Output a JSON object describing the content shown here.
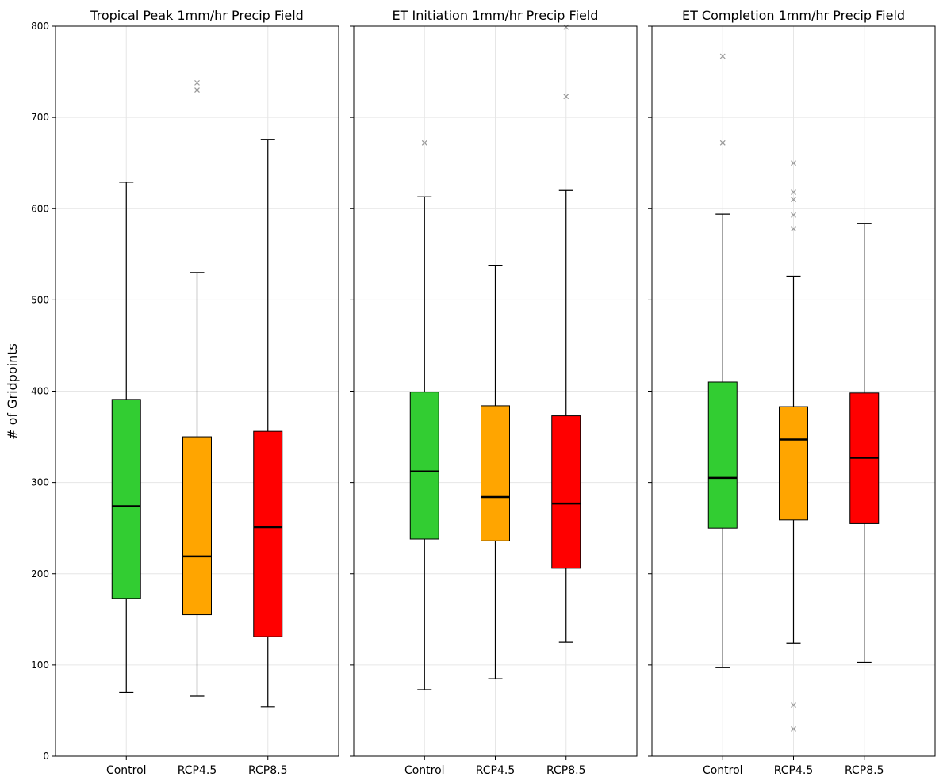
{
  "figure": {
    "ylabel": "# of Gridpoints"
  },
  "chart_data": [
    {
      "type": "box",
      "title": "Tropical Peak 1mm/hr Precip Field",
      "xlabel": "",
      "ylabel": "# of Gridpoints",
      "ylim": [
        0,
        800
      ],
      "yticks": [
        0,
        100,
        200,
        300,
        400,
        500,
        600,
        700,
        800
      ],
      "grid": true,
      "categories": [
        "Control",
        "RCP4.5",
        "RCP8.5"
      ],
      "boxes": [
        {
          "name": "Control",
          "color": "#32CD32",
          "whisker_low": 70,
          "q1": 173,
          "median": 274,
          "q3": 391,
          "whisker_high": 629,
          "outliers": []
        },
        {
          "name": "RCP4.5",
          "color": "#FFA500",
          "whisker_low": 66,
          "q1": 155,
          "median": 219,
          "q3": 350,
          "whisker_high": 530,
          "outliers": [
            730,
            738
          ]
        },
        {
          "name": "RCP8.5",
          "color": "#FF0000",
          "whisker_low": 54,
          "q1": 131,
          "median": 251,
          "q3": 356,
          "whisker_high": 676,
          "outliers": []
        }
      ]
    },
    {
      "type": "box",
      "title": "ET Initiation 1mm/hr Precip Field",
      "xlabel": "",
      "ylabel": "",
      "ylim": [
        0,
        800
      ],
      "yticks": [
        0,
        100,
        200,
        300,
        400,
        500,
        600,
        700,
        800
      ],
      "grid": true,
      "categories": [
        "Control",
        "RCP4.5",
        "RCP8.5"
      ],
      "boxes": [
        {
          "name": "Control",
          "color": "#32CD32",
          "whisker_low": 73,
          "q1": 238,
          "median": 312,
          "q3": 399,
          "whisker_high": 613,
          "outliers": [
            672
          ]
        },
        {
          "name": "RCP4.5",
          "color": "#FFA500",
          "whisker_low": 85,
          "q1": 236,
          "median": 284,
          "q3": 384,
          "whisker_high": 538,
          "outliers": []
        },
        {
          "name": "RCP8.5",
          "color": "#FF0000",
          "whisker_low": 125,
          "q1": 206,
          "median": 277,
          "q3": 373,
          "whisker_high": 620,
          "outliers": [
            723,
            799
          ]
        }
      ]
    },
    {
      "type": "box",
      "title": "ET Completion 1mm/hr Precip Field",
      "xlabel": "",
      "ylabel": "",
      "ylim": [
        0,
        800
      ],
      "yticks": [
        0,
        100,
        200,
        300,
        400,
        500,
        600,
        700,
        800
      ],
      "grid": true,
      "categories": [
        "Control",
        "RCP4.5",
        "RCP8.5"
      ],
      "boxes": [
        {
          "name": "Control",
          "color": "#32CD32",
          "whisker_low": 97,
          "q1": 250,
          "median": 305,
          "q3": 410,
          "whisker_high": 594,
          "outliers": [
            672,
            767
          ]
        },
        {
          "name": "RCP4.5",
          "color": "#FFA500",
          "whisker_low": 124,
          "q1": 259,
          "median": 347,
          "q3": 383,
          "whisker_high": 526,
          "outliers": [
            30,
            56,
            578,
            593,
            610,
            618,
            650
          ]
        },
        {
          "name": "RCP8.5",
          "color": "#FF0000",
          "whisker_low": 103,
          "q1": 255,
          "median": 327,
          "q3": 398,
          "whisker_high": 584,
          "outliers": []
        }
      ]
    }
  ]
}
